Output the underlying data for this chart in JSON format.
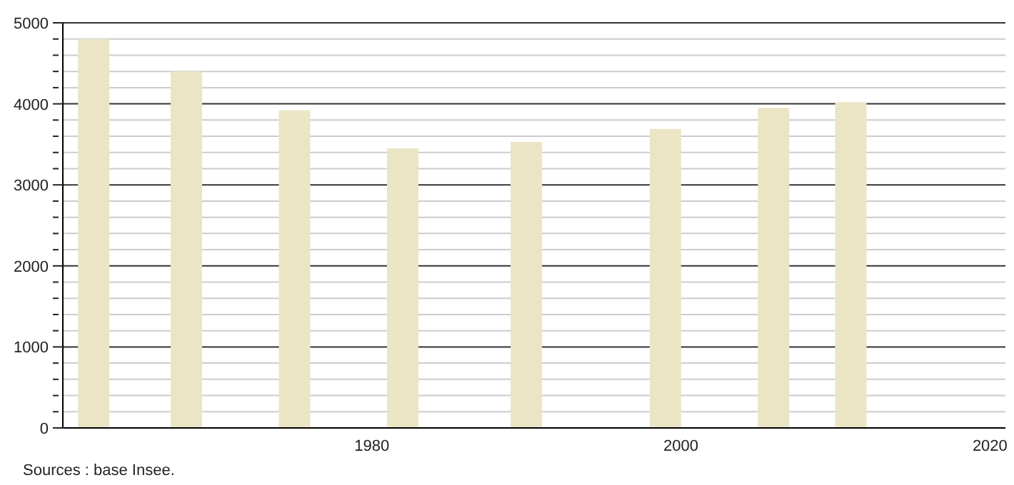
{
  "chart_data": {
    "type": "bar",
    "x": [
      1962,
      1968,
      1975,
      1982,
      1990,
      1999,
      2006,
      2011
    ],
    "values": [
      4800,
      4400,
      3920,
      3450,
      3530,
      3690,
      3950,
      4020
    ],
    "color": "#ebe5c6",
    "xlim": [
      1960,
      2021
    ],
    "xticks": [
      1980,
      2000,
      2020
    ],
    "ylim": [
      0,
      5000
    ],
    "yticks": [
      0,
      {
        "value": 200,
        "label": null
      },
      {
        "value": 400,
        "label": null
      },
      {
        "value": 600,
        "label": null
      },
      {
        "value": 800,
        "label": null
      },
      1000,
      {
        "value": 1200,
        "label": null
      },
      {
        "value": 1400,
        "label": null
      },
      {
        "value": 1600,
        "label": null
      },
      {
        "value": 1800,
        "label": null
      },
      2000,
      {
        "value": 2200,
        "label": null
      },
      {
        "value": 2400,
        "label": null
      },
      {
        "value": 2600,
        "label": null
      },
      {
        "value": 2800,
        "label": null
      },
      3000,
      {
        "value": 3200,
        "label": null
      },
      {
        "value": 3400,
        "label": null
      },
      {
        "value": 3600,
        "label": null
      },
      {
        "value": 3800,
        "label": null
      },
      4000,
      {
        "value": 4200,
        "label": null
      },
      {
        "value": 4400,
        "label": null
      },
      {
        "value": 4600,
        "label": null
      },
      {
        "value": 4800,
        "label": null
      },
      5000
    ],
    "grid": "y",
    "annotations": [
      "Sources : base Insee."
    ]
  }
}
